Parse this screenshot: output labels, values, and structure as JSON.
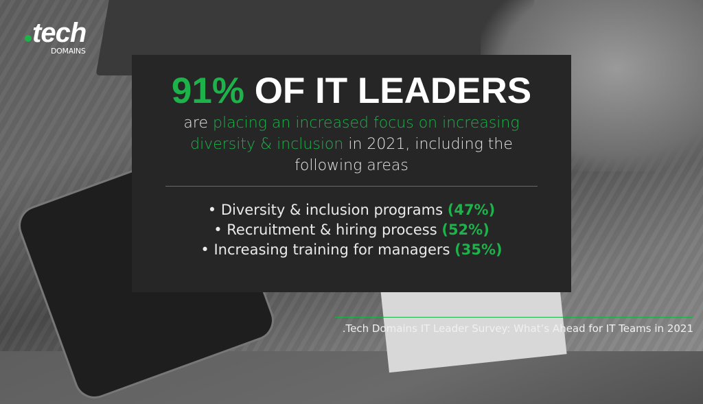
{
  "logo": {
    "name": "tech",
    "sub": "DOMAINS"
  },
  "headline": {
    "stat": "91%",
    "rest": "OF IT LEADERS"
  },
  "subtitle": {
    "part1": "are ",
    "highlight1": "placing an increased focus on increasing diversity & inclusion",
    "part2": " in 2021, including the following areas"
  },
  "areas": [
    {
      "label": "Diversity & inclusion programs",
      "percent": "(47%)"
    },
    {
      "label": "Recruitment & hiring process",
      "percent": "(52%)"
    },
    {
      "label": "Increasing training for managers",
      "percent": "(35%)"
    }
  ],
  "source": ".Tech Domains IT Leader Survey: What’s Ahead for IT Teams in 2021",
  "colors": {
    "accent": "#1db34a",
    "divider": "#c0405a",
    "panel": "#262626"
  }
}
